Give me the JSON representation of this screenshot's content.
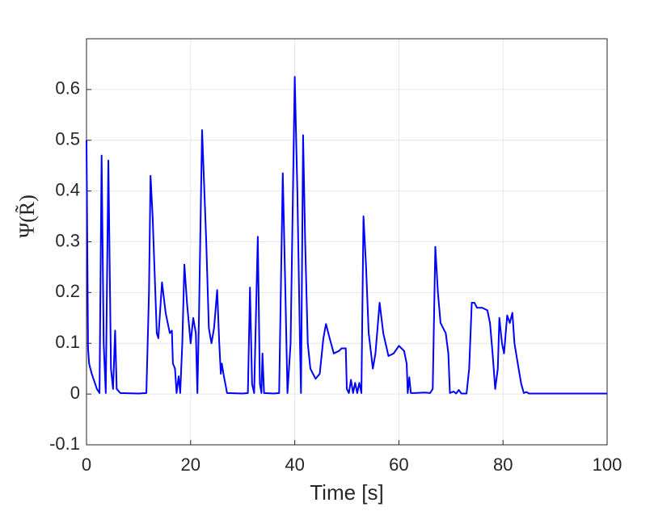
{
  "chart_data": {
    "type": "line",
    "xlabel": "Time [s]",
    "ylabel": "Ψ(R̃)",
    "color": "#0000ff",
    "grid": true,
    "xlim": [
      0,
      100
    ],
    "xticks": [
      0,
      20,
      40,
      60,
      80,
      100
    ],
    "ylim": [
      -0.1,
      0.7
    ],
    "yticks": [
      -0.1,
      0,
      0.1,
      0.2,
      0.3,
      0.4,
      0.5,
      0.6
    ],
    "x": [
      0,
      0.3,
      0.5,
      1,
      2,
      2.5,
      2.9,
      3.3,
      3.7,
      4.2,
      4.7,
      5.1,
      5.5,
      5.8,
      6.5,
      10,
      11.5,
      12,
      12.3,
      12.7,
      13.5,
      13.8,
      14.5,
      15.2,
      16,
      16.4,
      16.6,
      17,
      17.3,
      17.7,
      18,
      18.4,
      18.8,
      19.3,
      20,
      20.5,
      21,
      21.3,
      21.6,
      22.2,
      23,
      23.5,
      24,
      24.5,
      25.1,
      25.5,
      25.8,
      26,
      26.3,
      27,
      30,
      31,
      31.4,
      31.8,
      32.2,
      32.9,
      33.3,
      33.6,
      33.8,
      34.1,
      36,
      37,
      37.7,
      38.2,
      38.6,
      39.2,
      40,
      40.5,
      41,
      41.2,
      41.6,
      42,
      42.5,
      43,
      44,
      44.8,
      45.5,
      46,
      46.7,
      47.5,
      48.5,
      49,
      49.8,
      50,
      50.4,
      50.8,
      51.2,
      51.6,
      52,
      52.4,
      52.8,
      53.2,
      53.7,
      54.2,
      55,
      55.5,
      56.3,
      57,
      58,
      59,
      60,
      61,
      61.5,
      61.7,
      62,
      62.3,
      63,
      65,
      66,
      66.5,
      67,
      67.5,
      68,
      69,
      69.5,
      69.8,
      70.5,
      71,
      71.5,
      72,
      73,
      73.5,
      74,
      74.5,
      75,
      76,
      77,
      77.5,
      78,
      78.5,
      79,
      79.3,
      79.8,
      80.2,
      80.8,
      81.3,
      81.8,
      82.2,
      83,
      83.5,
      84,
      84.5,
      85,
      100
    ],
    "values": [
      0.5,
      0.09,
      0.06,
      0.04,
      0.01,
      0.002,
      0.47,
      0.1,
      0.002,
      0.46,
      0.05,
      0.01,
      0.125,
      0.01,
      0.002,
      0.001,
      0.002,
      0.2,
      0.43,
      0.35,
      0.12,
      0.11,
      0.22,
      0.16,
      0.12,
      0.125,
      0.06,
      0.05,
      0.002,
      0.035,
      0.002,
      0.1,
      0.255,
      0.18,
      0.1,
      0.15,
      0.12,
      0.002,
      0.15,
      0.52,
      0.3,
      0.13,
      0.1,
      0.13,
      0.205,
      0.1,
      0.04,
      0.06,
      0.04,
      0.002,
      0.001,
      0.002,
      0.21,
      0.02,
      0.002,
      0.31,
      0.02,
      0.002,
      0.08,
      0.002,
      0.001,
      0.002,
      0.435,
      0.2,
      0.002,
      0.1,
      0.625,
      0.4,
      0.1,
      0.002,
      0.51,
      0.3,
      0.1,
      0.05,
      0.03,
      0.04,
      0.11,
      0.138,
      0.11,
      0.08,
      0.085,
      0.09,
      0.09,
      0.01,
      0.002,
      0.028,
      0.002,
      0.022,
      0.002,
      0.022,
      0.002,
      0.35,
      0.25,
      0.12,
      0.05,
      0.08,
      0.18,
      0.12,
      0.075,
      0.08,
      0.095,
      0.085,
      0.06,
      0.002,
      0.033,
      0.002,
      0.002,
      0.003,
      0.002,
      0.01,
      0.29,
      0.2,
      0.14,
      0.12,
      0.08,
      0.002,
      0.005,
      0.001,
      0.008,
      0.001,
      0.001,
      0.05,
      0.18,
      0.18,
      0.17,
      0.17,
      0.165,
      0.14,
      0.08,
      0.01,
      0.05,
      0.15,
      0.1,
      0.08,
      0.155,
      0.14,
      0.16,
      0.1,
      0.05,
      0.02,
      0.002,
      0.004,
      0.001,
      0.001
    ]
  }
}
